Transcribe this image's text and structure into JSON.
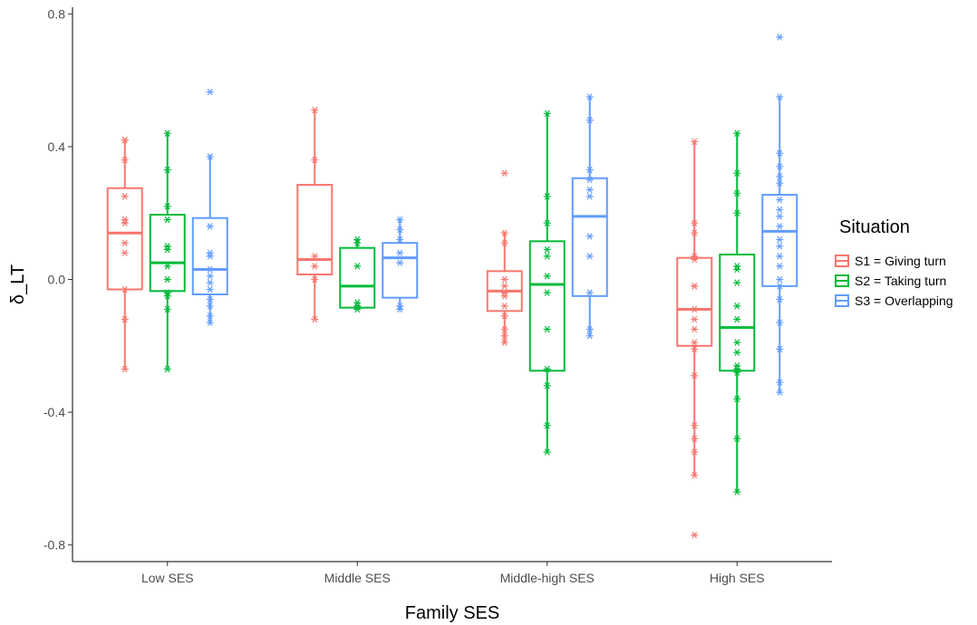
{
  "chart_data": {
    "type": "box",
    "xlabel": "Family SES",
    "ylabel": "δ_LT",
    "ylim": [
      -0.85,
      0.82
    ],
    "yticks": [
      0.8,
      0.4,
      0.0,
      -0.4,
      -0.8
    ],
    "ytick_labels": [
      "0.8",
      "0.4",
      "0.0",
      "-0.4",
      "-0.8"
    ],
    "categories": [
      "Low SES",
      "Middle SES",
      "Middle-high SES",
      "High SES"
    ],
    "grid": false,
    "legend": {
      "title": "Situation",
      "position": "right",
      "entries": [
        "S1 = Giving turn",
        "S2 = Taking turn",
        "S3 = Overlapping"
      ]
    },
    "series": [
      {
        "name": "S1 = Giving turn",
        "color": "#F8766D",
        "boxes": [
          {
            "category": "Low SES",
            "whisker_low": -0.27,
            "q1": -0.03,
            "median": 0.14,
            "q3": 0.275,
            "whisker_high": 0.425,
            "points": [
              0.42,
              0.42,
              0.36,
              0.25,
              0.18,
              0.17,
              0.11,
              0.08,
              -0.03,
              -0.12,
              -0.27
            ]
          },
          {
            "category": "Middle SES",
            "whisker_low": -0.12,
            "q1": 0.015,
            "median": 0.06,
            "q3": 0.285,
            "whisker_high": 0.51,
            "points": [
              0.51,
              0.36,
              0.07,
              0.04,
              0.0,
              -0.12
            ]
          },
          {
            "category": "Middle-high SES",
            "whisker_low": -0.19,
            "q1": -0.095,
            "median": -0.035,
            "q3": 0.025,
            "whisker_high": 0.14,
            "points": [
              0.32,
              0.14,
              0.11,
              0.0,
              -0.02,
              -0.04,
              -0.05,
              -0.08,
              -0.11,
              -0.15,
              -0.17,
              -0.19
            ]
          },
          {
            "category": "High SES",
            "whisker_low": -0.59,
            "q1": -0.2,
            "median": -0.09,
            "q3": 0.065,
            "whisker_high": 0.415,
            "points": [
              0.415,
              0.17,
              0.14,
              0.07,
              0.06,
              -0.02,
              -0.02,
              -0.09,
              -0.12,
              -0.15,
              -0.19,
              -0.21,
              -0.29,
              -0.44,
              -0.48,
              -0.52,
              -0.59,
              -0.77
            ]
          }
        ]
      },
      {
        "name": "S2 = Taking turn",
        "color": "#00BA38",
        "boxes": [
          {
            "category": "Low SES",
            "whisker_low": -0.265,
            "q1": -0.035,
            "median": 0.05,
            "q3": 0.195,
            "whisker_high": 0.445,
            "points": [
              0.44,
              0.33,
              0.22,
              0.18,
              0.1,
              0.09,
              0.04,
              0.0,
              -0.04,
              -0.05,
              -0.09,
              -0.27
            ]
          },
          {
            "category": "Middle SES",
            "whisker_low": -0.09,
            "q1": -0.085,
            "median": -0.02,
            "q3": 0.095,
            "whisker_high": 0.12,
            "points": [
              0.12,
              0.11,
              0.04,
              -0.07,
              -0.08,
              -0.09
            ]
          },
          {
            "category": "Middle-high SES",
            "whisker_low": -0.52,
            "q1": -0.275,
            "median": -0.015,
            "q3": 0.115,
            "whisker_high": 0.5,
            "points": [
              0.5,
              0.25,
              0.17,
              0.09,
              0.07,
              0.01,
              -0.04,
              -0.15,
              -0.27,
              -0.32,
              -0.44,
              -0.52
            ]
          },
          {
            "category": "High SES",
            "whisker_low": -0.64,
            "q1": -0.275,
            "median": -0.145,
            "q3": 0.075,
            "whisker_high": 0.445,
            "points": [
              0.44,
              0.32,
              0.26,
              0.2,
              0.04,
              0.03,
              -0.01,
              -0.08,
              -0.12,
              -0.19,
              -0.22,
              -0.26,
              -0.27,
              -0.28,
              -0.36,
              -0.48,
              -0.64
            ]
          }
        ]
      },
      {
        "name": "S3 = Overlapping",
        "color": "#619CFF",
        "boxes": [
          {
            "category": "Low SES",
            "whisker_low": -0.135,
            "q1": -0.045,
            "median": 0.03,
            "q3": 0.185,
            "whisker_high": 0.375,
            "points": [
              0.565,
              0.37,
              0.16,
              0.08,
              0.07,
              0.03,
              0.01,
              -0.01,
              -0.03,
              -0.06,
              -0.08,
              -0.11,
              -0.13
            ]
          },
          {
            "category": "Middle SES",
            "whisker_low": -0.09,
            "q1": -0.055,
            "median": 0.065,
            "q3": 0.11,
            "whisker_high": 0.185,
            "points": [
              0.18,
              0.15,
              0.12,
              0.08,
              0.05,
              -0.08,
              -0.09
            ]
          },
          {
            "category": "Middle-high SES",
            "whisker_low": -0.17,
            "q1": -0.05,
            "median": 0.19,
            "q3": 0.305,
            "whisker_high": 0.55,
            "points": [
              0.55,
              0.48,
              0.33,
              0.3,
              0.27,
              0.25,
              0.13,
              0.07,
              -0.04,
              -0.15,
              -0.17
            ]
          },
          {
            "category": "High SES",
            "whisker_low": -0.335,
            "q1": -0.02,
            "median": 0.145,
            "q3": 0.255,
            "whisker_high": 0.545,
            "points": [
              0.73,
              0.55,
              0.38,
              0.34,
              0.31,
              0.29,
              0.24,
              0.21,
              0.19,
              0.16,
              0.12,
              0.1,
              0.07,
              0.04,
              0.0,
              -0.02,
              -0.06,
              -0.13,
              -0.21,
              -0.31,
              -0.34
            ]
          }
        ]
      }
    ]
  }
}
